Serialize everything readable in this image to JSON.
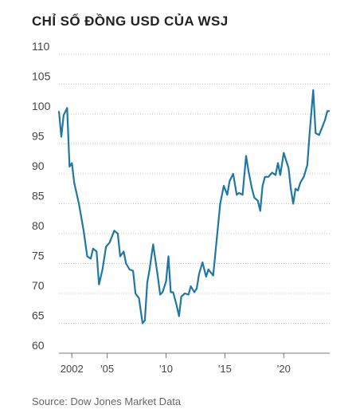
{
  "chart_data": {
    "type": "line",
    "title": "CHỈ SỐ ĐỒNG USD CỦA WSJ",
    "source": "Source: Dow Jones Market Data",
    "ylim": [
      60,
      110
    ],
    "yticks": [
      60,
      65,
      70,
      75,
      80,
      85,
      90,
      95,
      100,
      105,
      110
    ],
    "xlim": [
      2000.9,
      2023.9
    ],
    "xticks": [
      {
        "value": 2002,
        "label": "2002"
      },
      {
        "value": 2005,
        "label": "'05"
      },
      {
        "value": 2010,
        "label": "'10"
      },
      {
        "value": 2015,
        "label": "'15"
      },
      {
        "value": 2020,
        "label": "'20"
      }
    ],
    "grid": true,
    "line_color": "#1f77a6",
    "series": [
      {
        "x": [
          2000.9,
          2001.1,
          2001.3,
          2001.6,
          2001.8,
          2002.0,
          2002.2,
          2002.6,
          2003.0,
          2003.3,
          2003.6,
          2003.8,
          2004.1,
          2004.3,
          2004.6,
          2004.9,
          2005.2,
          2005.6,
          2005.9,
          2006.1,
          2006.4,
          2006.6,
          2006.9,
          2007.2,
          2007.4,
          2007.7,
          2008.0,
          2008.2,
          2008.4,
          2008.6,
          2008.9,
          2009.3,
          2009.5,
          2009.7,
          2010.0,
          2010.2,
          2010.4,
          2010.6,
          2010.9,
          2011.1,
          2011.3,
          2011.6,
          2011.9,
          2012.1,
          2012.4,
          2012.6,
          2012.8,
          2013.1,
          2013.4,
          2013.6,
          2013.8,
          2014.0,
          2014.3,
          2014.6,
          2014.9,
          2015.2,
          2015.4,
          2015.7,
          2016.0,
          2016.2,
          2016.5,
          2016.8,
          2017.0,
          2017.3,
          2017.5,
          2017.8,
          2018.0,
          2018.2,
          2018.4,
          2018.7,
          2019.0,
          2019.3,
          2019.5,
          2019.7,
          2020.0,
          2020.2,
          2020.4,
          2020.6,
          2020.8,
          2021.0,
          2021.2,
          2021.4,
          2021.7,
          2022.0,
          2022.2,
          2022.5,
          2022.7,
          2023.0,
          2023.2,
          2023.5,
          2023.7,
          2023.9
        ],
        "y": [
          100.5,
          96.2,
          99.8,
          101.0,
          91.2,
          91.8,
          88.5,
          85.0,
          80.5,
          76.2,
          75.8,
          77.5,
          77.0,
          71.5,
          74.0,
          77.8,
          78.5,
          80.5,
          80.0,
          76.2,
          77.0,
          75.0,
          74.0,
          73.8,
          70.0,
          69.2,
          65.0,
          65.5,
          71.8,
          74.0,
          78.2,
          72.8,
          69.8,
          70.2,
          72.0,
          76.2,
          70.2,
          70.2,
          68.0,
          66.2,
          69.5,
          70.0,
          69.8,
          71.2,
          70.2,
          70.8,
          73.2,
          75.2,
          72.8,
          74.0,
          73.5,
          73.0,
          79.0,
          85.0,
          88.0,
          86.5,
          88.8,
          90.0,
          86.5,
          86.8,
          86.5,
          93.0,
          90.5,
          87.5,
          86.0,
          85.5,
          83.8,
          88.0,
          89.5,
          89.5,
          90.2,
          89.8,
          91.8,
          89.8,
          93.5,
          92.2,
          91.0,
          87.5,
          85.0,
          87.5,
          87.2,
          88.5,
          89.5,
          91.5,
          97.0,
          104.0,
          96.8,
          96.5,
          97.5,
          99.0,
          100.5,
          100.5
        ]
      }
    ]
  }
}
